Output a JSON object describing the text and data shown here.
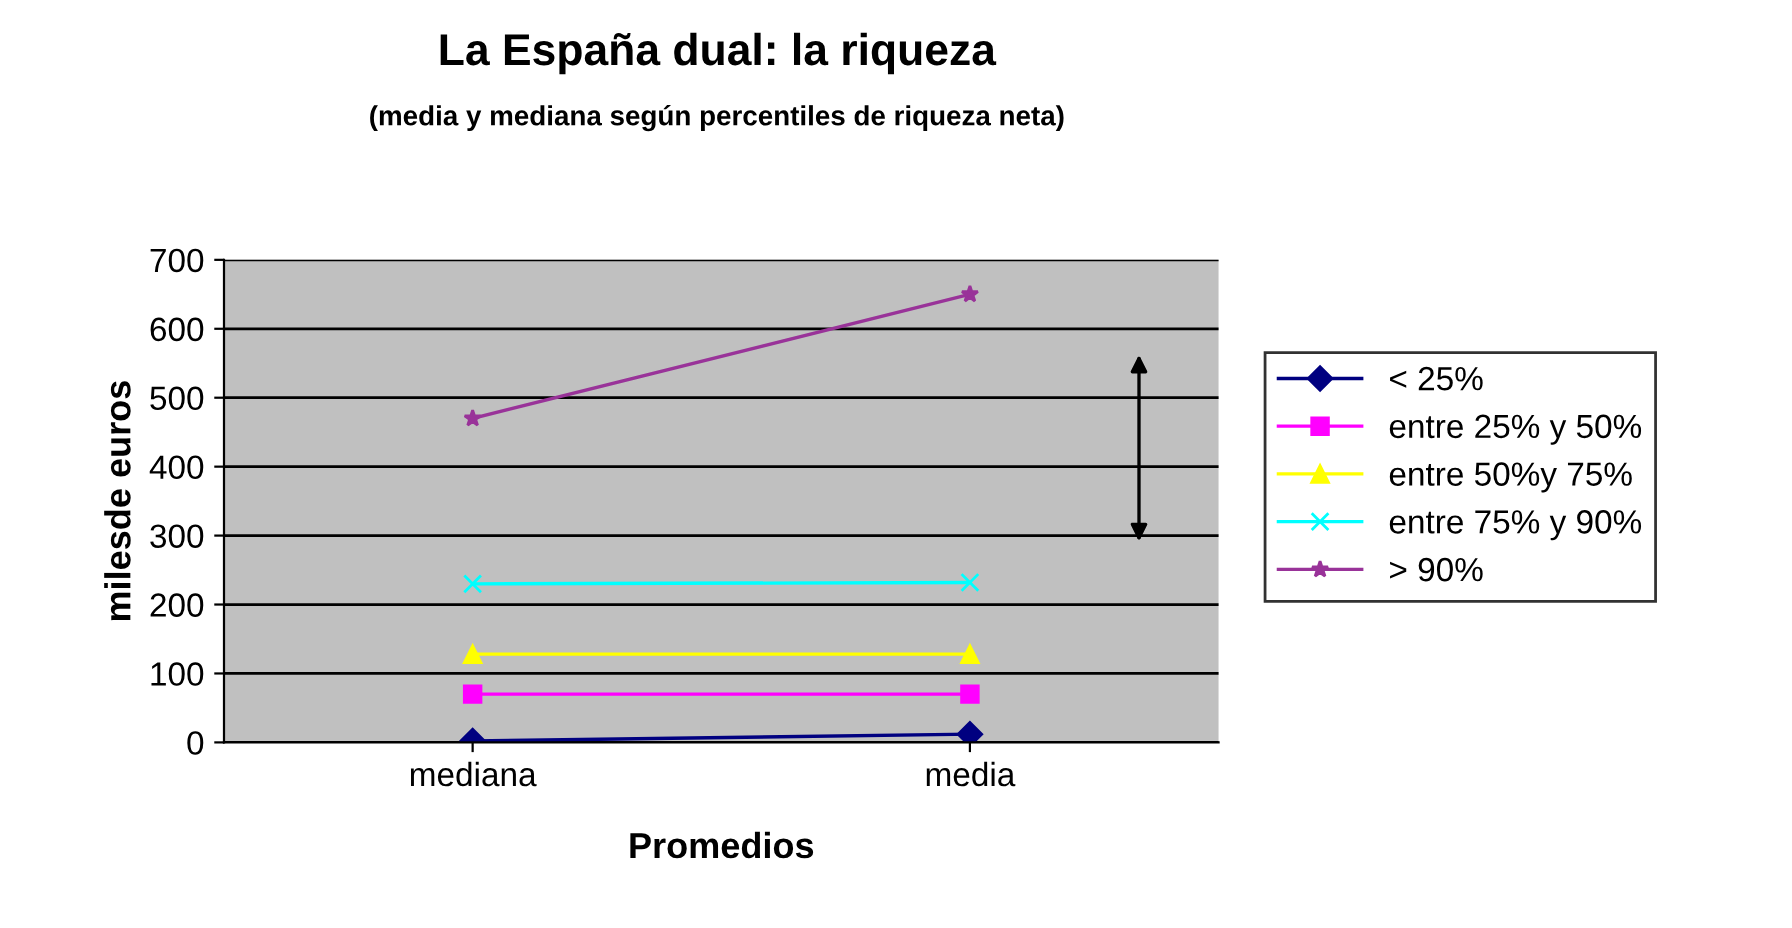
{
  "chart_data": {
    "type": "line",
    "title": "La España dual: la riqueza",
    "subtitle": "(media y mediana según percentiles de riqueza neta)",
    "xlabel": "Promedios",
    "ylabel": "milesde euros",
    "categories": [
      "mediana",
      "media"
    ],
    "series": [
      {
        "name": "< 25%",
        "color": "#000080",
        "marker": "diamond",
        "values": [
          2,
          12
        ]
      },
      {
        "name": "entre 25% y 50%",
        "color": "#ff00ff",
        "marker": "square",
        "values": [
          70,
          70
        ]
      },
      {
        "name": "entre 50%y 75%",
        "color": "#ffff00",
        "marker": "triangle",
        "values": [
          128,
          128
        ]
      },
      {
        "name": "entre 75% y 90%",
        "color": "#00ffff",
        "marker": "cross",
        "values": [
          230,
          232
        ]
      },
      {
        "name": "> 90%",
        "color": "#993399",
        "marker": "star",
        "values": [
          470,
          650
        ]
      }
    ],
    "ylim": [
      0,
      700
    ],
    "yticks": [
      0,
      100,
      200,
      300,
      400,
      500,
      600,
      700
    ],
    "grid": "y",
    "legend": "right",
    "line_style": "solid"
  }
}
